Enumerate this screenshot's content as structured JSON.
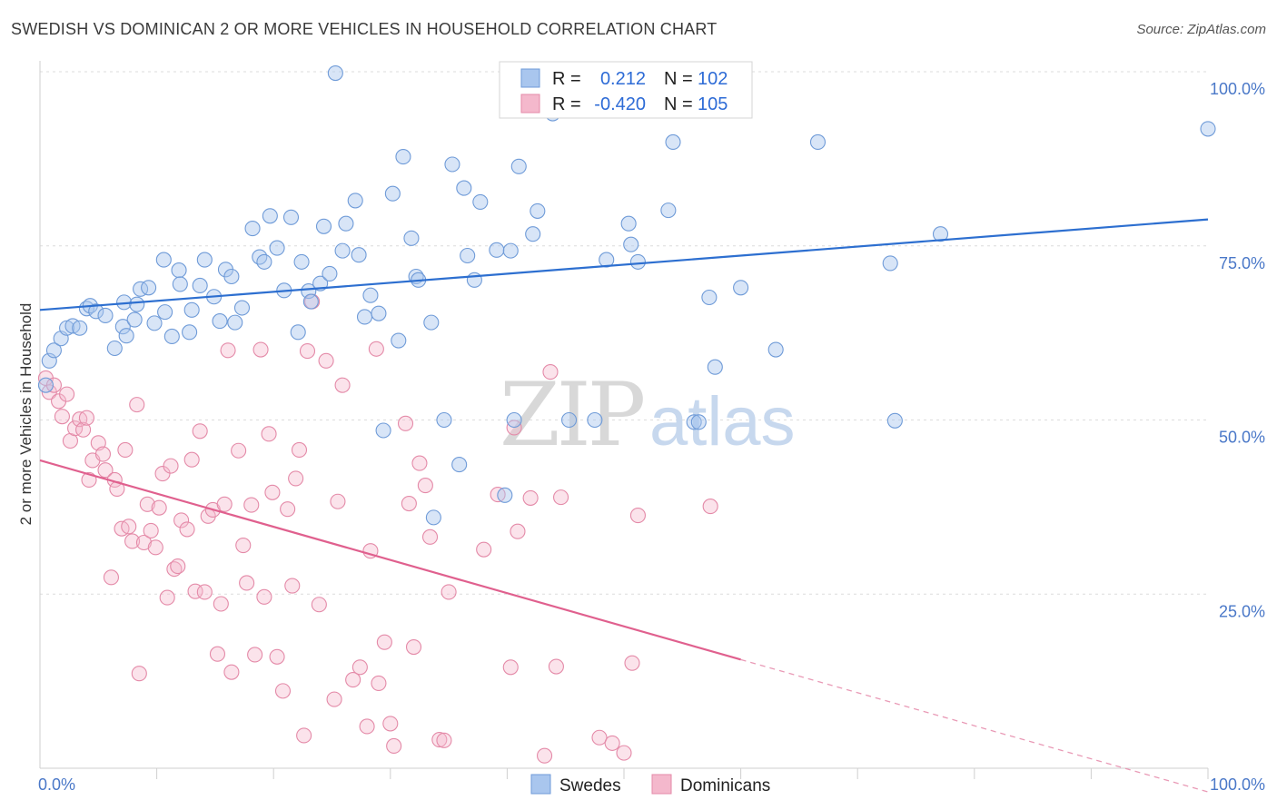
{
  "title": "SWEDISH VS DOMINICAN 2 OR MORE VEHICLES IN HOUSEHOLD CORRELATION CHART",
  "source": "Source: ZipAtlas.com",
  "watermark": {
    "zip": "ZIP",
    "atlas": "atlas"
  },
  "colors": {
    "swedes": "#2d6fd0",
    "swedes_fill": "#a9c6ee",
    "dominicans": "#e0608e",
    "dominicans_fill": "#f4b8cc",
    "tick": "#4a78c8"
  },
  "legend": {
    "rows": [
      {
        "r_label": "R =",
        "r_value": "0.212",
        "n_label": "N =",
        "n_value": "102"
      },
      {
        "r_label": "R =",
        "r_value": "-0.420",
        "n_label": "N =",
        "n_value": "105"
      }
    ]
  },
  "bottom_legend": [
    "Swedes",
    "Dominicans"
  ],
  "chart_data": {
    "type": "scatter",
    "title": "SWEDISH VS DOMINICAN 2 OR MORE VEHICLES IN HOUSEHOLD CORRELATION CHART",
    "xlabel": "",
    "ylabel": "2 or more Vehicles in Household",
    "xlim": [
      0,
      100
    ],
    "ylim": [
      0,
      100
    ],
    "x_tick_labels": [
      "0.0%",
      "100.0%"
    ],
    "y_tick_labels": [
      "100.0%",
      "75.0%",
      "50.0%",
      "25.0%"
    ],
    "y_ticks": [
      100,
      75,
      50,
      25
    ],
    "grid": "horizontal dashed",
    "legend_placement": "top-center",
    "series": [
      {
        "name": "Swedes",
        "r": 0.212,
        "n": 102,
        "trend": {
          "x": [
            0,
            100
          ],
          "y": [
            65.8,
            78.8
          ]
        },
        "points": [
          [
            0.5,
            55.0
          ],
          [
            0.8,
            58.5
          ],
          [
            1.2,
            60.0
          ],
          [
            1.8,
            61.7
          ],
          [
            2.3,
            63.2
          ],
          [
            2.8,
            63.5
          ],
          [
            3.4,
            63.2
          ],
          [
            4.0,
            66.0
          ],
          [
            4.3,
            66.4
          ],
          [
            4.8,
            65.6
          ],
          [
            5.6,
            65.0
          ],
          [
            6.4,
            60.3
          ],
          [
            7.1,
            63.4
          ],
          [
            7.2,
            66.9
          ],
          [
            7.4,
            62.1
          ],
          [
            8.1,
            64.4
          ],
          [
            8.3,
            66.6
          ],
          [
            8.6,
            68.8
          ],
          [
            9.3,
            69.0
          ],
          [
            9.8,
            63.9
          ],
          [
            10.7,
            65.5
          ],
          [
            10.6,
            73.0
          ],
          [
            11.3,
            62.0
          ],
          [
            11.9,
            71.5
          ],
          [
            12.0,
            69.5
          ],
          [
            12.8,
            62.6
          ],
          [
            13.0,
            65.8
          ],
          [
            13.7,
            69.3
          ],
          [
            14.1,
            73.0
          ],
          [
            14.9,
            67.7
          ],
          [
            15.4,
            64.2
          ],
          [
            15.9,
            71.6
          ],
          [
            16.4,
            70.6
          ],
          [
            16.7,
            64.0
          ],
          [
            17.3,
            66.1
          ],
          [
            18.2,
            77.5
          ],
          [
            18.8,
            73.4
          ],
          [
            19.2,
            72.7
          ],
          [
            19.7,
            79.3
          ],
          [
            20.3,
            74.7
          ],
          [
            20.9,
            68.6
          ],
          [
            21.5,
            79.1
          ],
          [
            22.1,
            62.6
          ],
          [
            22.4,
            72.7
          ],
          [
            23.0,
            68.5
          ],
          [
            23.2,
            67.0
          ],
          [
            24.0,
            69.6
          ],
          [
            24.3,
            77.8
          ],
          [
            24.8,
            71.0
          ],
          [
            25.3,
            99.8
          ],
          [
            25.9,
            74.3
          ],
          [
            26.2,
            78.2
          ],
          [
            27.0,
            81.5
          ],
          [
            27.3,
            73.7
          ],
          [
            27.8,
            64.8
          ],
          [
            28.3,
            67.9
          ],
          [
            29.0,
            65.3
          ],
          [
            29.4,
            48.5
          ],
          [
            30.2,
            82.5
          ],
          [
            30.7,
            61.4
          ],
          [
            31.1,
            87.8
          ],
          [
            31.8,
            76.1
          ],
          [
            32.2,
            70.6
          ],
          [
            32.4,
            70.1
          ],
          [
            33.5,
            64.0
          ],
          [
            33.7,
            36.0
          ],
          [
            34.6,
            50.0
          ],
          [
            35.3,
            86.7
          ],
          [
            35.9,
            43.6
          ],
          [
            36.3,
            83.3
          ],
          [
            36.6,
            73.6
          ],
          [
            37.2,
            70.1
          ],
          [
            37.7,
            81.3
          ],
          [
            39.1,
            74.4
          ],
          [
            39.8,
            39.2
          ],
          [
            40.3,
            74.3
          ],
          [
            40.6,
            50.0
          ],
          [
            41.0,
            86.4
          ],
          [
            42.2,
            76.7
          ],
          [
            42.6,
            80.0
          ],
          [
            43.9,
            94.0
          ],
          [
            43.8,
            100.0
          ],
          [
            45.3,
            50.0
          ],
          [
            47.5,
            50.0
          ],
          [
            48.5,
            73.0
          ],
          [
            50.4,
            78.2
          ],
          [
            50.6,
            75.2
          ],
          [
            51.2,
            72.7
          ],
          [
            53.8,
            80.1
          ],
          [
            54.2,
            89.9
          ],
          [
            56.0,
            49.7
          ],
          [
            56.4,
            49.7
          ],
          [
            57.3,
            67.6
          ],
          [
            57.8,
            57.6
          ],
          [
            60.0,
            69.0
          ],
          [
            63.0,
            60.1
          ],
          [
            66.6,
            89.9
          ],
          [
            72.8,
            72.5
          ],
          [
            73.2,
            49.9
          ],
          [
            77.1,
            76.7
          ],
          [
            100.0,
            91.8
          ],
          [
            52.8,
            99.7
          ]
        ]
      },
      {
        "name": "Dominicans",
        "r": -0.42,
        "n": 105,
        "trend": {
          "x": [
            0,
            60
          ],
          "y": [
            44.2,
            15.6
          ]
        },
        "trend_dashed": {
          "x": [
            60,
            100
          ],
          "y": [
            15.6,
            -3.4
          ]
        },
        "points": [
          [
            0.5,
            56.0
          ],
          [
            0.8,
            54.0
          ],
          [
            1.2,
            55.0
          ],
          [
            1.6,
            52.7
          ],
          [
            1.9,
            50.5
          ],
          [
            2.3,
            53.7
          ],
          [
            2.6,
            47.0
          ],
          [
            3.0,
            48.8
          ],
          [
            3.4,
            50.1
          ],
          [
            3.7,
            48.6
          ],
          [
            4.0,
            50.3
          ],
          [
            4.2,
            41.4
          ],
          [
            4.5,
            44.2
          ],
          [
            5.0,
            46.7
          ],
          [
            5.4,
            45.1
          ],
          [
            5.6,
            42.8
          ],
          [
            6.1,
            27.4
          ],
          [
            6.4,
            41.4
          ],
          [
            6.6,
            40.1
          ],
          [
            7.0,
            34.4
          ],
          [
            7.3,
            45.7
          ],
          [
            7.6,
            34.7
          ],
          [
            7.9,
            32.6
          ],
          [
            8.3,
            52.2
          ],
          [
            8.5,
            13.6
          ],
          [
            8.9,
            32.4
          ],
          [
            9.2,
            37.9
          ],
          [
            9.5,
            34.1
          ],
          [
            9.9,
            31.7
          ],
          [
            10.2,
            37.4
          ],
          [
            10.5,
            42.3
          ],
          [
            10.9,
            24.5
          ],
          [
            11.2,
            43.4
          ],
          [
            11.5,
            28.6
          ],
          [
            11.8,
            29.0
          ],
          [
            12.1,
            35.6
          ],
          [
            12.6,
            34.3
          ],
          [
            13.0,
            44.3
          ],
          [
            13.3,
            25.4
          ],
          [
            13.7,
            48.4
          ],
          [
            14.1,
            25.3
          ],
          [
            14.4,
            36.2
          ],
          [
            14.8,
            37.1
          ],
          [
            15.2,
            16.4
          ],
          [
            15.5,
            23.6
          ],
          [
            15.8,
            37.9
          ],
          [
            16.1,
            60.0
          ],
          [
            16.4,
            13.8
          ],
          [
            17.0,
            45.6
          ],
          [
            17.4,
            32.0
          ],
          [
            17.7,
            26.6
          ],
          [
            18.1,
            37.8
          ],
          [
            18.4,
            16.3
          ],
          [
            18.9,
            60.1
          ],
          [
            19.2,
            24.6
          ],
          [
            19.6,
            48.0
          ],
          [
            19.9,
            39.6
          ],
          [
            20.3,
            16.0
          ],
          [
            20.8,
            11.1
          ],
          [
            21.2,
            37.2
          ],
          [
            21.6,
            26.2
          ],
          [
            21.9,
            41.6
          ],
          [
            22.2,
            45.7
          ],
          [
            22.6,
            4.7
          ],
          [
            22.9,
            59.9
          ],
          [
            23.3,
            67.0
          ],
          [
            23.9,
            23.5
          ],
          [
            24.5,
            58.5
          ],
          [
            25.2,
            9.9
          ],
          [
            25.5,
            38.3
          ],
          [
            25.9,
            55.0
          ],
          [
            26.8,
            12.7
          ],
          [
            27.4,
            14.5
          ],
          [
            28.0,
            6.0
          ],
          [
            28.3,
            31.2
          ],
          [
            28.8,
            60.2
          ],
          [
            29.0,
            12.2
          ],
          [
            29.5,
            18.1
          ],
          [
            30.0,
            6.4
          ],
          [
            30.3,
            3.2
          ],
          [
            31.3,
            49.5
          ],
          [
            31.6,
            38.0
          ],
          [
            32.0,
            17.4
          ],
          [
            32.5,
            43.8
          ],
          [
            33.0,
            40.6
          ],
          [
            33.4,
            33.2
          ],
          [
            34.2,
            4.1
          ],
          [
            34.6,
            4.0
          ],
          [
            35.0,
            25.3
          ],
          [
            38.0,
            31.4
          ],
          [
            39.2,
            39.3
          ],
          [
            40.6,
            48.9
          ],
          [
            40.3,
            14.5
          ],
          [
            40.9,
            34.0
          ],
          [
            42.0,
            38.8
          ],
          [
            43.2,
            1.8
          ],
          [
            43.7,
            56.9
          ],
          [
            44.2,
            14.6
          ],
          [
            44.6,
            38.9
          ],
          [
            47.9,
            4.4
          ],
          [
            49.0,
            3.6
          ],
          [
            50.0,
            2.2
          ],
          [
            50.7,
            15.1
          ],
          [
            51.2,
            36.3
          ],
          [
            57.4,
            37.6
          ]
        ]
      }
    ]
  }
}
